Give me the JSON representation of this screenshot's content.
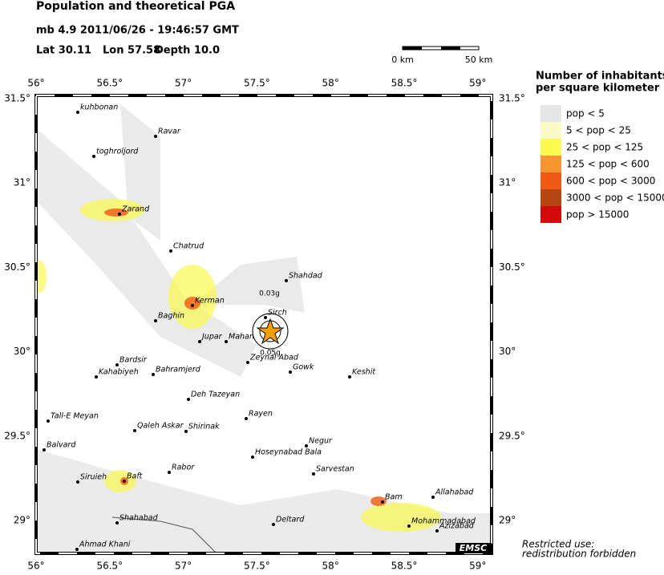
{
  "header": {
    "title": "Population and theoretical PGA",
    "event": "mb 4.9  2011/06/26 - 19:46:57 GMT",
    "lat": "Lat 30.11",
    "lon": "Lon 57.58",
    "depth": "Depth 10.0"
  },
  "scale": {
    "start": "0 km",
    "end": "50 km"
  },
  "lon_labels": [
    "56°",
    "56.5°",
    "57°",
    "57.5°",
    "58°",
    "58.5°",
    "59°"
  ],
  "lat_labels": [
    "31.5°",
    "31°",
    "30.5°",
    "30°",
    "29.5°",
    "29°"
  ],
  "legend": {
    "title_line1": "Number of inhabitants",
    "title_line2": "per square kilometer",
    "items": [
      {
        "label": "pop < 5",
        "color": "#e6e6e6"
      },
      {
        "label": "5 < pop < 25",
        "color": "#fafac8"
      },
      {
        "label": "25 < pop < 125",
        "color": "#fafa50"
      },
      {
        "label": "125 < pop < 600",
        "color": "#fa9632"
      },
      {
        "label": "600 < pop < 3000",
        "color": "#f05a14"
      },
      {
        "label": "3000 < pop < 15000",
        "color": "#b4460f"
      },
      {
        "label": "pop > 15000",
        "color": "#d20a0a"
      }
    ]
  },
  "pga_labels": [
    "0.03g",
    "0.05g"
  ],
  "cities": [
    "kuhbonan",
    "Ravar",
    "toghroljord",
    "Zarand",
    "Chatrud",
    "Kerman",
    "Baghin",
    "Jupar",
    "Mahan",
    "Sirch",
    "Shahdad",
    "Zeynal Abad",
    "Gowk",
    "Keshit",
    "Bardsir",
    "Kahabiyeh",
    "Bahramjerd",
    "Deh Tazeyan",
    "Rayen",
    "Tall-E Meyan",
    "Qaleh Askar",
    "Shirinak",
    "Balvard",
    "Negur",
    "Hoseynabad Bala",
    "Sarvestan",
    "Rabor",
    "Baft",
    "Siruieh",
    "Bam",
    "Allahabad",
    "Shahabad",
    "Deltard",
    "Mohammadabad",
    "Azizabad",
    "Ahmad Khani"
  ],
  "footer": {
    "line1": "Restricted use:",
    "line2": "redistribution forbidden",
    "logo": "EMSC"
  }
}
